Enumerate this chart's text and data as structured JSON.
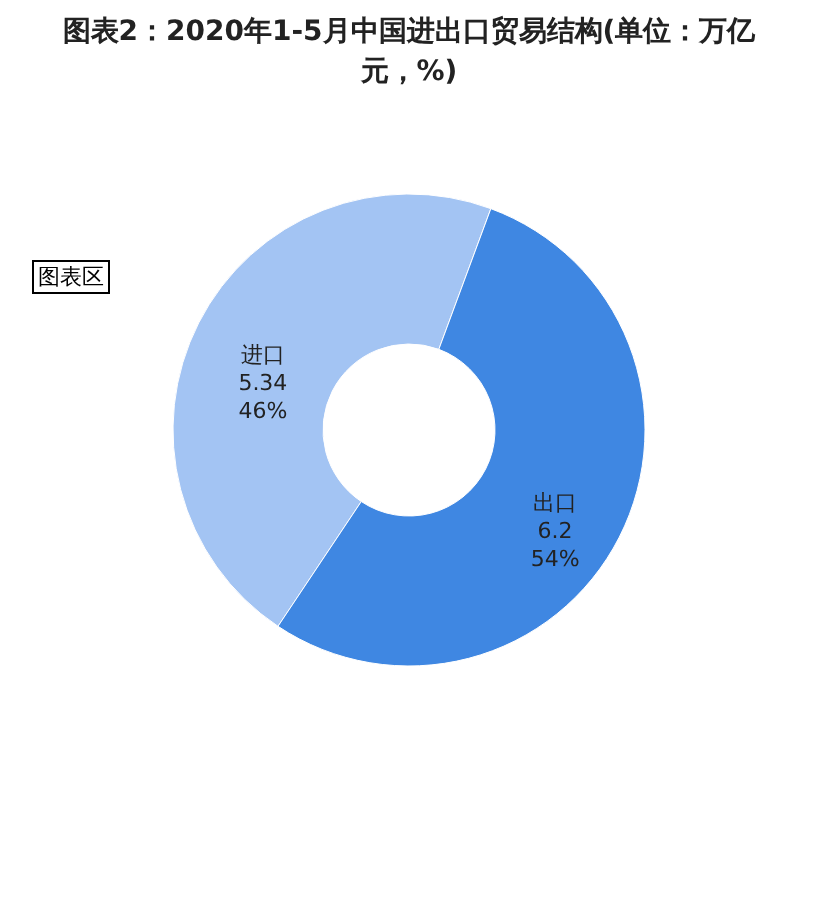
{
  "chart_data": {
    "type": "donut",
    "title": "图表2：2020年1-5月中国进出口贸易结构(单位：万亿元，%)",
    "categories": [
      "进口",
      "出口"
    ],
    "values": [
      5.34,
      6.2
    ],
    "colors": [
      "#a3c4f3",
      "#3f87e2"
    ],
    "value_labels": [
      "5.34\n46%",
      "6.2\n54%"
    ],
    "annotations": [
      "图表区"
    ]
  }
}
